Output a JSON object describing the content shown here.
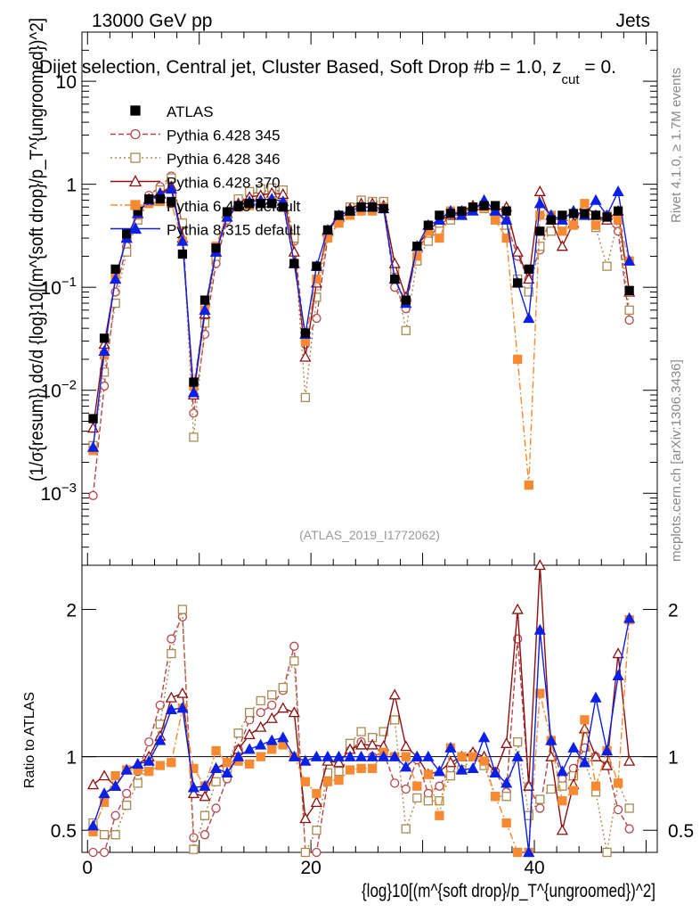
{
  "header": {
    "energy_label": "13000 GeV pp",
    "process_label": "Jets",
    "title": "Dijet selection, Central jet, Cluster Based, Soft Drop #b = 1.0, z",
    "title_sub": "cut",
    "title_tail": " = 0."
  },
  "side_labels": {
    "rivet": "Rivet 4.1.0, ≥ 1.7M events",
    "mcplots": "mcplots.cern.ch [arXiv:1306.3436]"
  },
  "watermark": "(ATLAS_2019_I1772062)",
  "colors": {
    "ATLAS": "#000000",
    "Pythia 6.428 345": "#b5464b",
    "Pythia 6.428 346": "#a88a52",
    "Pythia 6.428 370": "#8b1010",
    "Pythia 6.428 default": "#f58a32",
    "Pythia 8.315 default": "#0a20e6"
  },
  "chart_data": [
    {
      "type": "line",
      "panel": "main",
      "yscale": "log",
      "title": "Dijet selection, Central jet, Cluster Based, Soft Drop #b = 1.0, z_cut = 0.",
      "xlabel": "{log}10[(m^{soft drop}/p_T^{ungroomed})^2]",
      "ylabel": "(1/σ{resum}) dσ/d {log}10[(m^{soft drop}/p_T^{ungroomed})^2]",
      "xlim": [
        -0.5,
        51
      ],
      "ylim": [
        0.0002,
        30
      ],
      "y_ticks": [
        {
          "value": 0.001,
          "base": "10",
          "exp": "−3"
        },
        {
          "value": 0.01,
          "base": "10",
          "exp": "−2"
        },
        {
          "value": 0.1,
          "base": "10",
          "exp": "−1"
        },
        {
          "value": 1,
          "base": "1",
          "exp": ""
        },
        {
          "value": 10,
          "base": "10",
          "exp": ""
        }
      ],
      "legend": [
        "ATLAS",
        "Pythia 6.428 345",
        "Pythia 6.428 346",
        "Pythia 6.428 370",
        "Pythia 6.428 default",
        "Pythia 8.315 default"
      ],
      "series": [
        {
          "name": "ATLAS",
          "values": [
            0.0053,
            0.032,
            0.15,
            0.33,
            0.55,
            0.72,
            0.72,
            0.68,
            0.21,
            0.012,
            0.075,
            0.24,
            0.54,
            0.62,
            0.65,
            0.65,
            0.65,
            0.6,
            0.17,
            0.036,
            0.16,
            0.36,
            0.5,
            0.55,
            0.6,
            0.6,
            0.58,
            0.12,
            0.075,
            0.25,
            0.4,
            0.5,
            0.52,
            0.55,
            0.6,
            0.62,
            0.62,
            0.55,
            0.11,
            0.15,
            0.35,
            0.45,
            0.5,
            0.52,
            0.52,
            0.5,
            0.48,
            0.55,
            0.093
          ]
        },
        {
          "name": "Pythia 6.428 345",
          "values": [
            0.00095,
            0.011,
            0.09,
            0.25,
            0.5,
            0.78,
            0.95,
            1.2,
            0.4,
            0.006,
            0.035,
            0.17,
            0.45,
            0.65,
            0.8,
            0.85,
            0.88,
            0.85,
            0.28,
            0.028,
            0.05,
            0.3,
            0.42,
            0.58,
            0.65,
            0.65,
            0.6,
            0.1,
            0.062,
            0.25,
            0.3,
            0.4,
            0.48,
            0.55,
            0.6,
            0.6,
            0.56,
            0.42,
            0.2,
            0.12,
            0.23,
            0.5,
            0.42,
            0.48,
            0.55,
            0.5,
            0.45,
            0.35,
            0.048
          ]
        },
        {
          "name": "Pythia 6.428 346",
          "values": [
            0.0029,
            0.015,
            0.07,
            0.22,
            0.45,
            0.68,
            0.88,
            1.15,
            0.42,
            0.0035,
            0.045,
            0.2,
            0.5,
            0.72,
            0.85,
            0.9,
            0.92,
            0.88,
            0.3,
            0.0085,
            0.08,
            0.32,
            0.45,
            0.6,
            0.7,
            0.68,
            0.68,
            0.15,
            0.038,
            0.18,
            0.28,
            0.35,
            0.45,
            0.5,
            0.6,
            0.58,
            0.45,
            0.4,
            0.12,
            0.09,
            0.25,
            0.35,
            0.4,
            0.45,
            0.5,
            0.38,
            0.16,
            0.45,
            0.06
          ]
        },
        {
          "name": "Pythia 6.428 370",
          "values": [
            0.0043,
            0.028,
            0.12,
            0.3,
            0.52,
            0.72,
            0.82,
            0.95,
            0.3,
            0.009,
            0.055,
            0.22,
            0.52,
            0.65,
            0.75,
            0.78,
            0.82,
            0.8,
            0.22,
            0.021,
            0.11,
            0.35,
            0.48,
            0.58,
            0.65,
            0.65,
            0.62,
            0.17,
            0.08,
            0.25,
            0.35,
            0.45,
            0.5,
            0.55,
            0.62,
            0.62,
            0.55,
            0.6,
            0.22,
            0.12,
            0.85,
            0.45,
            0.25,
            0.42,
            0.62,
            0.5,
            0.45,
            0.55,
            0.09
          ]
        },
        {
          "name": "Pythia 6.428 default",
          "values": [
            0.0026,
            0.022,
            0.13,
            0.3,
            0.5,
            0.65,
            0.68,
            0.65,
            0.28,
            0.011,
            0.06,
            0.25,
            0.52,
            0.6,
            0.62,
            0.65,
            0.68,
            0.65,
            0.17,
            0.03,
            0.12,
            0.3,
            0.42,
            0.5,
            0.55,
            0.55,
            0.6,
            0.12,
            0.075,
            0.2,
            0.35,
            0.3,
            0.55,
            0.55,
            0.6,
            0.6,
            0.45,
            0.3,
            0.02,
            0.0012,
            0.5,
            0.5,
            0.35,
            0.4,
            0.65,
            0.4,
            0.5,
            0.45,
            0.18
          ]
        },
        {
          "name": "Pythia 8.315 default",
          "values": [
            0.0028,
            0.024,
            0.12,
            0.3,
            0.52,
            0.7,
            0.8,
            0.9,
            0.28,
            0.0095,
            0.06,
            0.22,
            0.48,
            0.62,
            0.68,
            0.7,
            0.72,
            0.68,
            0.17,
            0.035,
            0.16,
            0.36,
            0.5,
            0.55,
            0.6,
            0.6,
            0.58,
            0.12,
            0.07,
            0.25,
            0.4,
            0.45,
            0.55,
            0.5,
            0.55,
            0.7,
            0.55,
            0.45,
            0.11,
            0.05,
            0.65,
            0.5,
            0.45,
            0.55,
            0.5,
            0.7,
            0.5,
            0.85,
            0.18
          ]
        }
      ]
    },
    {
      "type": "line",
      "panel": "ratio",
      "ylabel": "Ratio to ATLAS",
      "xlabel": "{log}10[(m^{soft drop}/p_T^{ungroomed})^2]",
      "xlim": [
        -0.5,
        51
      ],
      "ylim": [
        0.35,
        2.3
      ],
      "y_ticks": [
        0.5,
        1,
        2
      ],
      "x_ticks": [
        0,
        20,
        40
      ],
      "reference_line": 1,
      "series": [
        {
          "name": "Pythia 6.428 345",
          "values": [
            0.18,
            0.34,
            0.6,
            0.75,
            0.9,
            1.1,
            1.35,
            1.8,
            1.95,
            0.45,
            0.47,
            0.65,
            0.85,
            1.05,
            1.25,
            1.3,
            1.35,
            1.45,
            1.75,
            0.3,
            0.28,
            0.83,
            0.85,
            1.05,
            1.1,
            1.0,
            1.03,
            0.82,
            0.78,
            0.98,
            0.75,
            0.8,
            0.92,
            1.0,
            1.02,
            0.97,
            0.9,
            0.76,
            1.8,
            0.8,
            0.65,
            1.1,
            0.85,
            0.92,
            1.06,
            1.0,
            0.94,
            0.64,
            0.51
          ]
        },
        {
          "name": "Pythia 6.428 346",
          "values": [
            0.55,
            0.47,
            0.47,
            0.67,
            0.82,
            0.94,
            1.22,
            1.7,
            2.0,
            0.37,
            0.6,
            0.83,
            0.92,
            1.16,
            1.3,
            1.38,
            1.42,
            1.47,
            1.65,
            0.24,
            0.5,
            0.89,
            0.9,
            1.09,
            1.17,
            1.13,
            1.17,
            1.25,
            0.51,
            0.72,
            0.7,
            0.7,
            0.87,
            0.91,
            1.0,
            0.94,
            0.73,
            0.73,
            1.1,
            0.6,
            0.71,
            0.78,
            0.8,
            0.87,
            0.96,
            0.76,
            0.33,
            0.82,
            0.65
          ]
        },
        {
          "name": "Pythia 6.428 370",
          "values": [
            0.81,
            0.87,
            0.8,
            0.91,
            0.95,
            1.0,
            1.14,
            1.4,
            1.43,
            0.75,
            0.73,
            0.92,
            0.96,
            1.05,
            1.15,
            1.2,
            1.26,
            1.33,
            1.3,
            0.58,
            0.69,
            0.97,
            0.96,
            1.05,
            1.08,
            1.08,
            1.07,
            1.42,
            1.07,
            1.0,
            0.88,
            0.9,
            0.96,
            1.0,
            1.03,
            1.0,
            0.89,
            1.09,
            2.0,
            0.8,
            2.4,
            1.0,
            0.5,
            0.81,
            1.19,
            1.0,
            0.94,
            1.7,
            0.97
          ]
        },
        {
          "name": "Pythia 6.428 default",
          "values": [
            0.49,
            0.69,
            0.87,
            0.91,
            0.91,
            0.9,
            0.94,
            0.96,
            1.33,
            0.92,
            0.8,
            1.04,
            0.96,
            0.97,
            0.95,
            1.0,
            1.05,
            1.08,
            1.0,
            0.83,
            0.75,
            0.83,
            0.84,
            0.91,
            0.92,
            0.92,
            1.03,
            1.0,
            1.0,
            0.8,
            0.88,
            0.6,
            1.06,
            1.0,
            1.0,
            0.97,
            0.73,
            0.55,
            0.18,
            0.008,
            1.43,
            1.11,
            0.7,
            0.77,
            1.25,
            0.8,
            1.04,
            0.82,
            1.93
          ]
        },
        {
          "name": "Pythia 8.315 default",
          "values": [
            0.53,
            0.75,
            0.8,
            0.91,
            0.95,
            0.97,
            1.11,
            1.32,
            1.33,
            0.79,
            0.8,
            0.92,
            0.89,
            1.0,
            1.05,
            1.08,
            1.11,
            1.13,
            1.0,
            0.97,
            1.0,
            1.0,
            1.0,
            1.0,
            1.0,
            1.0,
            1.0,
            1.0,
            0.93,
            1.0,
            1.0,
            0.9,
            1.06,
            0.91,
            0.92,
            1.13,
            0.89,
            0.82,
            1.0,
            0.33,
            1.86,
            1.11,
            0.9,
            1.06,
            0.96,
            1.4,
            1.04,
            1.55,
            1.94
          ]
        }
      ]
    }
  ]
}
